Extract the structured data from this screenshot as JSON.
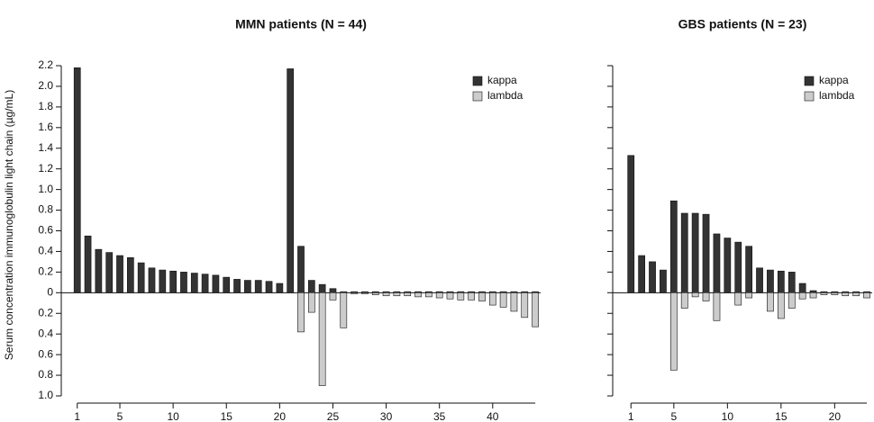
{
  "chart_data": [
    {
      "type": "bar",
      "title": "MMN patients (N = 44)",
      "y_label": "Serum concentration immunoglobulin light chain (µg/mL)",
      "x": [
        1,
        2,
        3,
        4,
        5,
        6,
        7,
        8,
        9,
        10,
        11,
        12,
        13,
        14,
        15,
        16,
        17,
        18,
        19,
        20,
        21,
        22,
        23,
        24,
        25,
        26,
        27,
        28,
        29,
        30,
        31,
        32,
        33,
        34,
        35,
        36,
        37,
        38,
        39,
        40,
        41,
        42,
        43,
        44
      ],
      "series": [
        {
          "name": "kappa",
          "color": "#333333",
          "values": [
            2.18,
            0.55,
            0.42,
            0.39,
            0.36,
            0.34,
            0.29,
            0.24,
            0.22,
            0.21,
            0.2,
            0.19,
            0.18,
            0.17,
            0.15,
            0.13,
            0.12,
            0.12,
            0.11,
            0.09,
            2.17,
            0.45,
            0.12,
            0.08,
            0.04,
            0.01,
            0.01,
            0.01,
            0.01,
            0.01,
            0.01,
            0.01,
            0.01,
            0.01,
            0.01,
            0.01,
            0.01,
            0.01,
            0.01,
            0.01,
            0.01,
            0.01,
            0.01,
            0.01
          ]
        },
        {
          "name": "lambda",
          "color": "#cccccc",
          "values": [
            0,
            0,
            0,
            0,
            0,
            0,
            0,
            0,
            0,
            0,
            0,
            0,
            0,
            0,
            0,
            0,
            0,
            0,
            0,
            0,
            0,
            -0.38,
            -0.19,
            -0.9,
            -0.07,
            -0.34,
            -0.01,
            -0.01,
            -0.02,
            -0.03,
            -0.03,
            -0.03,
            -0.04,
            -0.04,
            -0.05,
            -0.06,
            -0.07,
            -0.07,
            -0.08,
            -0.12,
            -0.14,
            -0.18,
            -0.24,
            -0.33
          ]
        }
      ],
      "xlim": [
        -0.5,
        44.5
      ],
      "xticks": [
        1,
        5,
        10,
        15,
        20,
        25,
        30,
        35,
        40
      ],
      "ylim": [
        -1,
        2.2
      ],
      "yticks": [
        {
          "value": -1,
          "label": "1.0"
        },
        {
          "value": -0.8,
          "label": "0.8"
        },
        {
          "value": -0.6,
          "label": "0.6"
        },
        {
          "value": -0.4,
          "label": "0.4"
        },
        {
          "value": -0.2,
          "label": "0.2"
        },
        0,
        0.2,
        0.4,
        0.6,
        0.8,
        {
          "value": 1,
          "label": "1.0"
        },
        1.2,
        1.4,
        1.6,
        1.8,
        {
          "value": 2,
          "label": "2.0"
        },
        2.2
      ],
      "show_ytick_labels": true,
      "legend": "top-right"
    },
    {
      "type": "bar",
      "title": "GBS patients (N = 23)",
      "x": [
        1,
        2,
        3,
        4,
        5,
        6,
        7,
        8,
        9,
        10,
        11,
        12,
        13,
        14,
        15,
        16,
        17,
        18,
        19,
        20,
        21,
        22,
        23
      ],
      "series": [
        {
          "name": "kappa",
          "color": "#333333",
          "values": [
            1.33,
            0.36,
            0.3,
            0.22,
            0.89,
            0.77,
            0.77,
            0.76,
            0.57,
            0.53,
            0.49,
            0.45,
            0.24,
            0.22,
            0.21,
            0.2,
            0.09,
            0.02,
            0.01,
            0.01,
            0.01,
            0.01,
            0.01
          ]
        },
        {
          "name": "lambda",
          "color": "#cccccc",
          "values": [
            0,
            0,
            0,
            0,
            -0.75,
            -0.15,
            -0.04,
            -0.08,
            -0.27,
            0,
            -0.12,
            -0.05,
            0,
            -0.18,
            -0.25,
            -0.15,
            -0.06,
            -0.05,
            -0.02,
            -0.02,
            -0.03,
            -0.03,
            -0.05
          ]
        }
      ],
      "xlim": [
        -0.7,
        23.5
      ],
      "xticks": [
        1,
        5,
        10,
        15,
        20
      ],
      "ylim": [
        -1,
        2.2
      ],
      "yticks": [
        -1,
        -0.8,
        -0.6,
        -0.4,
        -0.2,
        0,
        0.2,
        0.4,
        0.6,
        0.8,
        1,
        1.2,
        1.4,
        1.6,
        1.8,
        2,
        2.2
      ],
      "show_ytick_labels": false,
      "legend": "top-right"
    }
  ]
}
